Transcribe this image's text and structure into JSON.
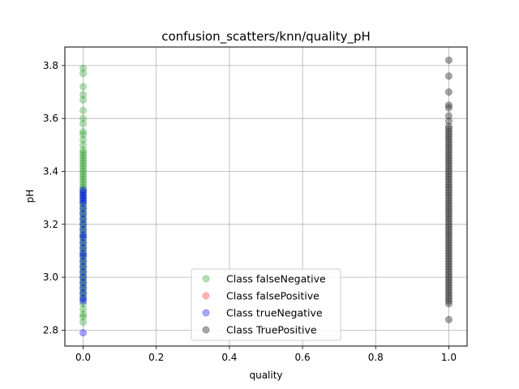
{
  "chart_data": {
    "type": "scatter",
    "title": "confusion_scatters/knn/quality_pH",
    "xlabel": "quality",
    "ylabel": "pH",
    "xlim": [
      -0.05,
      1.05
    ],
    "ylim": [
      2.74,
      3.87
    ],
    "xticks": [
      0.0,
      0.2,
      0.4,
      0.6,
      0.8,
      1.0
    ],
    "xtick_labels": [
      "0.0",
      "0.2",
      "0.4",
      "0.6",
      "0.8",
      "1.0"
    ],
    "yticks": [
      2.8,
      3.0,
      3.2,
      3.4,
      3.6,
      3.8
    ],
    "ytick_labels": [
      "2.8",
      "3.0",
      "3.2",
      "3.4",
      "3.6",
      "3.8"
    ],
    "grid": true,
    "legend_position": "lower-center",
    "series": [
      {
        "name": "Class falseNegative",
        "color": "#2ca02c",
        "alpha": 0.35,
        "points": [
          [
            0,
            3.79
          ],
          [
            0,
            3.77
          ],
          [
            0,
            3.72
          ],
          [
            0,
            3.69
          ],
          [
            0,
            3.67
          ],
          [
            0,
            3.63
          ],
          [
            0,
            3.6
          ],
          [
            0,
            3.58
          ],
          [
            0,
            3.55
          ],
          [
            0,
            3.54
          ],
          [
            0,
            3.52
          ],
          [
            0,
            3.5
          ],
          [
            0,
            3.48
          ],
          [
            0,
            3.47
          ],
          [
            0,
            3.46
          ],
          [
            0,
            3.45
          ],
          [
            0,
            3.44
          ],
          [
            0,
            3.43
          ],
          [
            0,
            3.42
          ],
          [
            0,
            3.41
          ],
          [
            0,
            3.4
          ],
          [
            0,
            3.39
          ],
          [
            0,
            3.38
          ],
          [
            0,
            3.37
          ],
          [
            0,
            3.36
          ],
          [
            0,
            3.35
          ],
          [
            0,
            3.34
          ],
          [
            0,
            3.33
          ],
          [
            0,
            3.32
          ],
          [
            0,
            3.31
          ],
          [
            0,
            3.3
          ],
          [
            0,
            3.29
          ],
          [
            0,
            3.28
          ],
          [
            0,
            3.27
          ],
          [
            0,
            3.26
          ],
          [
            0,
            3.25
          ],
          [
            0,
            3.24
          ],
          [
            0,
            3.23
          ],
          [
            0,
            3.22
          ],
          [
            0,
            3.21
          ],
          [
            0,
            3.2
          ],
          [
            0,
            3.19
          ],
          [
            0,
            3.18
          ],
          [
            0,
            3.17
          ],
          [
            0,
            3.16
          ],
          [
            0,
            3.15
          ],
          [
            0,
            3.14
          ],
          [
            0,
            3.13
          ],
          [
            0,
            3.12
          ],
          [
            0,
            3.11
          ],
          [
            0,
            3.1
          ],
          [
            0,
            3.09
          ],
          [
            0,
            3.08
          ],
          [
            0,
            3.07
          ],
          [
            0,
            3.06
          ],
          [
            0,
            3.05
          ],
          [
            0,
            3.04
          ],
          [
            0,
            3.03
          ],
          [
            0,
            3.02
          ],
          [
            0,
            3.01
          ],
          [
            0,
            3.0
          ],
          [
            0,
            2.99
          ],
          [
            0,
            2.98
          ],
          [
            0,
            2.97
          ],
          [
            0,
            2.96
          ],
          [
            0,
            2.95
          ],
          [
            0,
            2.94
          ],
          [
            0,
            2.93
          ],
          [
            0,
            2.92
          ],
          [
            0,
            2.9
          ],
          [
            0,
            2.88
          ],
          [
            0,
            2.86
          ],
          [
            0,
            2.85
          ],
          [
            0,
            2.83
          ]
        ]
      },
      {
        "name": "Class falsePositive",
        "color": "#ff0000",
        "alpha": 0.3,
        "points": []
      },
      {
        "name": "Class trueNegative",
        "color": "#0000ff",
        "alpha": 0.35,
        "points": [
          [
            0,
            3.33
          ],
          [
            0,
            3.32
          ],
          [
            0,
            3.31
          ],
          [
            0,
            3.3
          ],
          [
            0,
            3.29
          ],
          [
            0,
            3.28
          ],
          [
            0,
            3.26
          ],
          [
            0,
            3.24
          ],
          [
            0,
            3.22
          ],
          [
            0,
            3.2
          ],
          [
            0,
            3.18
          ],
          [
            0,
            3.16
          ],
          [
            0,
            3.15
          ],
          [
            0,
            3.13
          ],
          [
            0,
            3.11
          ],
          [
            0,
            3.09
          ],
          [
            0,
            3.08
          ],
          [
            0,
            3.06
          ],
          [
            0,
            3.04
          ],
          [
            0,
            3.02
          ],
          [
            0,
            3.0
          ],
          [
            0,
            2.98
          ],
          [
            0,
            2.96
          ],
          [
            0,
            2.94
          ],
          [
            0,
            2.92
          ],
          [
            0,
            2.91
          ],
          [
            0,
            2.79
          ]
        ]
      },
      {
        "name": "Class TruePositive",
        "color": "#3a3a3a",
        "alpha": 0.45,
        "points": [
          [
            1,
            3.82
          ],
          [
            1,
            3.76
          ],
          [
            1,
            3.7
          ],
          [
            1,
            3.65
          ],
          [
            1,
            3.64
          ],
          [
            1,
            3.61
          ],
          [
            1,
            3.59
          ],
          [
            1,
            3.57
          ],
          [
            1,
            3.56
          ],
          [
            1,
            3.55
          ],
          [
            1,
            3.54
          ],
          [
            1,
            3.53
          ],
          [
            1,
            3.52
          ],
          [
            1,
            3.51
          ],
          [
            1,
            3.5
          ],
          [
            1,
            3.49
          ],
          [
            1,
            3.48
          ],
          [
            1,
            3.47
          ],
          [
            1,
            3.46
          ],
          [
            1,
            3.45
          ],
          [
            1,
            3.44
          ],
          [
            1,
            3.43
          ],
          [
            1,
            3.42
          ],
          [
            1,
            3.41
          ],
          [
            1,
            3.4
          ],
          [
            1,
            3.39
          ],
          [
            1,
            3.38
          ],
          [
            1,
            3.37
          ],
          [
            1,
            3.36
          ],
          [
            1,
            3.35
          ],
          [
            1,
            3.34
          ],
          [
            1,
            3.33
          ],
          [
            1,
            3.32
          ],
          [
            1,
            3.31
          ],
          [
            1,
            3.3
          ],
          [
            1,
            3.29
          ],
          [
            1,
            3.28
          ],
          [
            1,
            3.27
          ],
          [
            1,
            3.26
          ],
          [
            1,
            3.25
          ],
          [
            1,
            3.24
          ],
          [
            1,
            3.23
          ],
          [
            1,
            3.22
          ],
          [
            1,
            3.21
          ],
          [
            1,
            3.2
          ],
          [
            1,
            3.19
          ],
          [
            1,
            3.18
          ],
          [
            1,
            3.17
          ],
          [
            1,
            3.16
          ],
          [
            1,
            3.15
          ],
          [
            1,
            3.14
          ],
          [
            1,
            3.13
          ],
          [
            1,
            3.12
          ],
          [
            1,
            3.11
          ],
          [
            1,
            3.1
          ],
          [
            1,
            3.09
          ],
          [
            1,
            3.08
          ],
          [
            1,
            3.07
          ],
          [
            1,
            3.06
          ],
          [
            1,
            3.05
          ],
          [
            1,
            3.04
          ],
          [
            1,
            3.03
          ],
          [
            1,
            3.02
          ],
          [
            1,
            3.01
          ],
          [
            1,
            3.0
          ],
          [
            1,
            2.99
          ],
          [
            1,
            2.98
          ],
          [
            1,
            2.97
          ],
          [
            1,
            2.96
          ],
          [
            1,
            2.95
          ],
          [
            1,
            2.94
          ],
          [
            1,
            2.93
          ],
          [
            1,
            2.92
          ],
          [
            1,
            2.91
          ],
          [
            1,
            2.9
          ],
          [
            1,
            2.84
          ]
        ]
      }
    ]
  }
}
